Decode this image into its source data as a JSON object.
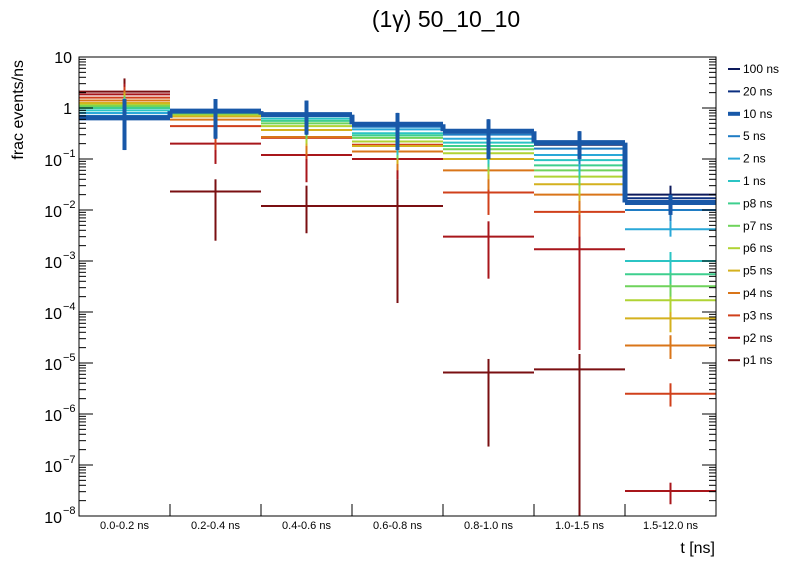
{
  "chart_data": {
    "type": "line",
    "title": "(1γ) 50_10_10",
    "xlabel": "t [ns]",
    "ylabel": "frac events/ns",
    "yscale": "log",
    "ylim": [
      1e-08,
      10
    ],
    "grid": false,
    "legend_position": "right",
    "categories": [
      "0.0-0.2 ns",
      "0.2-0.4 ns",
      "0.4-0.6 ns",
      "0.6-0.8 ns",
      "0.8-1.0 ns",
      "1.0-1.5 ns",
      "1.5-12.0 ns"
    ],
    "y_ticks": [
      {
        "value": 1e-08,
        "base": "10",
        "exp": "−8"
      },
      {
        "value": 1e-07,
        "base": "10",
        "exp": "−7"
      },
      {
        "value": 1e-06,
        "base": "10",
        "exp": "−6"
      },
      {
        "value": 1e-05,
        "base": "10",
        "exp": "−5"
      },
      {
        "value": 0.0001,
        "base": "10",
        "exp": "−4"
      },
      {
        "value": 0.001,
        "base": "10",
        "exp": "−3"
      },
      {
        "value": 0.01,
        "base": "10",
        "exp": "−2"
      },
      {
        "value": 0.1,
        "base": "10",
        "exp": "−1"
      },
      {
        "value": 1,
        "base": "1",
        "exp": ""
      },
      {
        "value": 10,
        "base": "10",
        "exp": ""
      }
    ],
    "series": [
      {
        "name": "100 ns",
        "color": "#0d1a5c",
        "values": [
          0.62,
          0.85,
          0.72,
          0.46,
          0.33,
          0.19,
          0.02
        ],
        "err": [
          [
            0.15,
            1.5
          ],
          [
            0.25,
            1.5
          ],
          [
            0.3,
            1.4
          ],
          [
            0.15,
            0.8
          ],
          [
            0.1,
            0.6
          ],
          [
            0.1,
            0.35
          ],
          [
            0.01,
            0.03
          ]
        ]
      },
      {
        "name": "20 ns",
        "color": "#0b2f80",
        "values": [
          0.63,
          0.86,
          0.73,
          0.47,
          0.34,
          0.2,
          0.017
        ],
        "err": [
          [
            0.15,
            1.5
          ],
          [
            0.25,
            1.5
          ],
          [
            0.3,
            1.4
          ],
          [
            0.15,
            0.8
          ],
          [
            0.1,
            0.6
          ],
          [
            0.1,
            0.35
          ],
          [
            0.009,
            0.025
          ]
        ]
      },
      {
        "name": "10 ns",
        "color": "#1858a8",
        "values": [
          0.64,
          0.87,
          0.74,
          0.48,
          0.35,
          0.21,
          0.014
        ],
        "err": [
          [
            0.15,
            1.5
          ],
          [
            0.25,
            1.5
          ],
          [
            0.3,
            1.4
          ],
          [
            0.15,
            0.8
          ],
          [
            0.1,
            0.6
          ],
          [
            0.1,
            0.35
          ],
          [
            0.008,
            0.02
          ]
        ]
      },
      {
        "name": "5 ns",
        "color": "#1f7cc4",
        "values": [
          0.7,
          0.89,
          0.76,
          0.43,
          0.3,
          0.16,
          0.01
        ],
        "err": [
          [
            0.2,
            1.5
          ],
          [
            0.3,
            1.5
          ],
          [
            0.3,
            1.4
          ],
          [
            0.15,
            0.7
          ],
          [
            0.1,
            0.5
          ],
          [
            0.08,
            0.25
          ],
          [
            0.006,
            0.014
          ]
        ]
      },
      {
        "name": "2 ns",
        "color": "#2aa8d8",
        "values": [
          0.8,
          0.88,
          0.7,
          0.38,
          0.25,
          0.12,
          0.0042
        ],
        "err": [
          [
            0.2,
            1.5
          ],
          [
            0.3,
            1.5
          ],
          [
            0.3,
            1.3
          ],
          [
            0.15,
            0.6
          ],
          [
            0.1,
            0.4
          ],
          [
            0.06,
            0.2
          ],
          [
            0.003,
            0.006
          ]
        ]
      },
      {
        "name": "1 ns",
        "color": "#2bc4c4",
        "values": [
          0.9,
          0.85,
          0.62,
          0.32,
          0.21,
          0.095,
          0.001
        ],
        "err": [
          [
            0.3,
            1.5
          ],
          [
            0.3,
            1.5
          ],
          [
            0.3,
            1.2
          ],
          [
            0.12,
            0.55
          ],
          [
            0.08,
            0.35
          ],
          [
            0.05,
            0.15
          ],
          [
            0.0006,
            0.0015
          ]
        ]
      },
      {
        "name": "p8 ns",
        "color": "#3ecf8e",
        "values": [
          1.0,
          0.82,
          0.56,
          0.29,
          0.18,
          0.075,
          0.00055
        ],
        "err": [
          [
            0.3,
            1.6
          ],
          [
            0.3,
            1.4
          ],
          [
            0.3,
            1.0
          ],
          [
            0.12,
            0.5
          ],
          [
            0.07,
            0.3
          ],
          [
            0.04,
            0.12
          ],
          [
            0.00035,
            0.0008
          ]
        ]
      },
      {
        "name": "p7 ns",
        "color": "#6fd35c",
        "values": [
          1.08,
          0.78,
          0.5,
          0.26,
          0.155,
          0.06,
          0.00032
        ],
        "err": [
          [
            0.4,
            1.7
          ],
          [
            0.3,
            1.3
          ],
          [
            0.25,
            0.9
          ],
          [
            0.1,
            0.45
          ],
          [
            0.06,
            0.25
          ],
          [
            0.03,
            0.1
          ],
          [
            0.0002,
            0.0005
          ]
        ]
      },
      {
        "name": "p6 ns",
        "color": "#b0d334",
        "values": [
          1.15,
          0.74,
          0.44,
          0.22,
          0.13,
          0.045,
          0.00017
        ],
        "err": [
          [
            0.4,
            1.8
          ],
          [
            0.3,
            1.2
          ],
          [
            0.2,
            0.8
          ],
          [
            0.1,
            0.4
          ],
          [
            0.05,
            0.2
          ],
          [
            0.02,
            0.08
          ],
          [
            0.0001,
            0.00028
          ]
        ]
      },
      {
        "name": "p5 ns",
        "color": "#d4b11e",
        "values": [
          1.25,
          0.68,
          0.37,
          0.18,
          0.1,
          0.032,
          7.5e-05
        ],
        "err": [
          [
            0.5,
            2.0
          ],
          [
            0.3,
            1.1
          ],
          [
            0.18,
            0.7
          ],
          [
            0.08,
            0.35
          ],
          [
            0.04,
            0.18
          ],
          [
            0.015,
            0.06
          ],
          [
            4e-05,
            0.00011
          ]
        ]
      },
      {
        "name": "p4 ns",
        "color": "#d97519",
        "values": [
          1.4,
          0.59,
          0.27,
          0.14,
          0.06,
          0.02,
          2.2e-05
        ],
        "err": [
          [
            0.5,
            2.2
          ],
          [
            0.25,
            1.0
          ],
          [
            0.12,
            0.5
          ],
          [
            0.06,
            0.3
          ],
          [
            0.025,
            0.12
          ],
          [
            0.008,
            0.04
          ],
          [
            1.2e-05,
            3.5e-05
          ]
        ]
      },
      {
        "name": "p3 ns",
        "color": "#d0401b",
        "values": [
          1.6,
          0.44,
          0.26,
          0.19,
          0.022,
          0.0092,
          2.5e-06
        ],
        "err": [
          [
            0.6,
            2.6
          ],
          [
            0.15,
            0.9
          ],
          [
            0.1,
            0.5
          ],
          [
            0.07,
            0.35
          ],
          [
            0.008,
            0.04
          ],
          [
            0.003,
            0.02
          ],
          [
            1.4e-06,
            4e-06
          ]
        ]
      },
      {
        "name": "p2 ns",
        "color": "#a8161b",
        "values": [
          1.85,
          0.2,
          0.12,
          0.1,
          0.003,
          0.0017,
          3.1e-08
        ],
        "err": [
          [
            0.8,
            3.0
          ],
          [
            0.08,
            0.4
          ],
          [
            0.035,
            0.25
          ],
          [
            0.04,
            0.2
          ],
          [
            0.00045,
            0.006
          ],
          [
            1.8e-05,
            0.005
          ],
          [
            1.7e-08,
            4.5e-08
          ]
        ]
      },
      {
        "name": "p1 ns",
        "color": "#7a0f12",
        "values": [
          2.1,
          0.023,
          0.012,
          0.012,
          6.5e-06,
          7.5e-06,
          null
        ],
        "err": [
          [
            1.0,
            3.8
          ],
          [
            0.0025,
            0.04
          ],
          [
            0.0035,
            0.03
          ],
          [
            0.00015,
            0.04
          ],
          [
            2.3e-07,
            1.2e-05
          ],
          [
            1e-08,
            1.5e-05
          ],
          null
        ]
      }
    ]
  }
}
